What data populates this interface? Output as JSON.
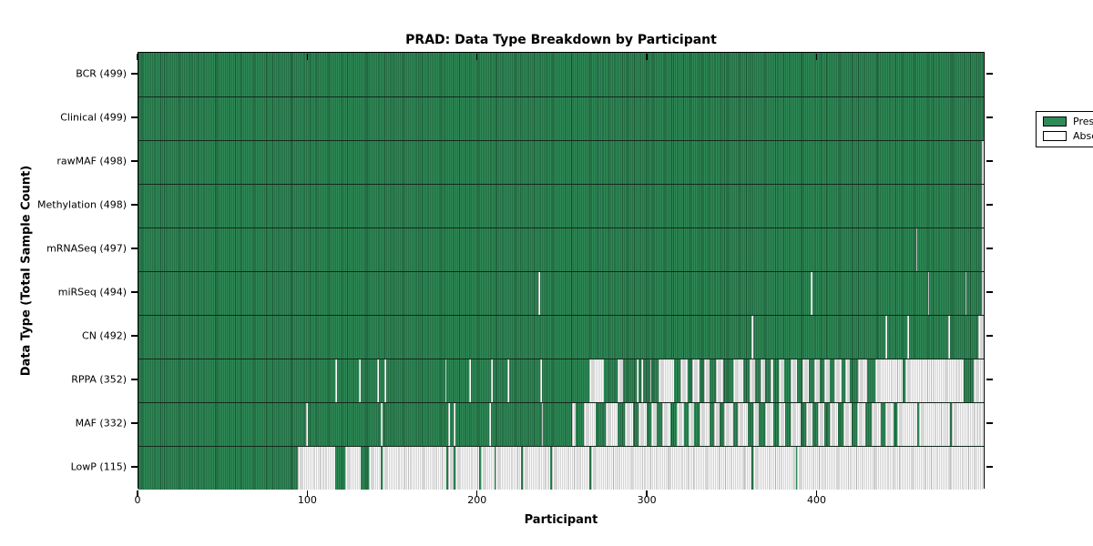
{
  "colors": {
    "present": "#2e8b57",
    "absent": "#ffffff",
    "frame": "#000000",
    "text": "#000000"
  },
  "chart_data": {
    "type": "heatmap",
    "title": "PRAD: Data Type Breakdown by Participant",
    "xlabel": "Participant",
    "ylabel": "Data Type (Total Sample Count)",
    "x_range": [
      0,
      499
    ],
    "n_participants": 499,
    "x_ticks": [
      0,
      100,
      200,
      300,
      400
    ],
    "grid": false,
    "legend_position": "upper right",
    "legend_entries": [
      {
        "label": "Present",
        "color": "#2e8b57"
      },
      {
        "label": "Absent",
        "color": "#ffffff"
      }
    ],
    "cell_states": {
      "present": "Present",
      "absent": "Absent"
    },
    "rows": [
      {
        "label": "BCR (499)",
        "data_type": "BCR",
        "present_count": 499,
        "absent_ranges": []
      },
      {
        "label": "Clinical (499)",
        "data_type": "Clinical",
        "present_count": 499,
        "absent_ranges": []
      },
      {
        "label": "rawMAF (498)",
        "data_type": "rawMAF",
        "present_count": 498,
        "absent_ranges": [
          [
            498,
            498
          ]
        ]
      },
      {
        "label": "Methylation (498)",
        "data_type": "Methylation",
        "present_count": 498,
        "absent_ranges": [
          [
            498,
            498
          ]
        ]
      },
      {
        "label": "mRNASeq (497)",
        "data_type": "mRNASeq",
        "present_count": 497,
        "absent_ranges": [
          [
            459,
            459
          ],
          [
            498,
            498
          ]
        ]
      },
      {
        "label": "miRSeq (494)",
        "data_type": "miRSeq",
        "present_count": 494,
        "absent_ranges": [
          [
            236,
            236
          ],
          [
            397,
            397
          ],
          [
            466,
            466
          ],
          [
            488,
            488
          ],
          [
            498,
            498
          ]
        ]
      },
      {
        "label": "CN (492)",
        "data_type": "CN",
        "present_count": 492,
        "absent_ranges": [
          [
            362,
            362
          ],
          [
            441,
            441
          ],
          [
            454,
            454
          ],
          [
            478,
            478
          ],
          [
            496,
            498
          ]
        ]
      },
      {
        "label": "RPPA (352)",
        "data_type": "RPPA",
        "present_count": 352,
        "absent_ranges": [
          [
            116,
            116
          ],
          [
            130,
            130
          ],
          [
            141,
            141
          ],
          [
            145,
            145
          ],
          [
            181,
            181
          ],
          [
            195,
            195
          ],
          [
            208,
            208
          ],
          [
            218,
            218
          ],
          [
            237,
            237
          ],
          [
            266,
            274
          ],
          [
            283,
            285
          ],
          [
            294,
            294
          ],
          [
            297,
            297
          ],
          [
            302,
            302
          ],
          [
            307,
            315
          ],
          [
            320,
            323
          ],
          [
            327,
            330
          ],
          [
            334,
            336
          ],
          [
            341,
            344
          ],
          [
            351,
            356
          ],
          [
            361,
            363
          ],
          [
            367,
            369
          ],
          [
            373,
            374
          ],
          [
            378,
            380
          ],
          [
            385,
            388
          ],
          [
            392,
            395
          ],
          [
            399,
            401
          ],
          [
            405,
            407
          ],
          [
            411,
            414
          ],
          [
            417,
            419
          ],
          [
            425,
            429
          ],
          [
            435,
            450
          ],
          [
            453,
            486
          ],
          [
            493,
            498
          ]
        ]
      },
      {
        "label": "MAF (332)",
        "data_type": "MAF",
        "present_count": 332,
        "absent_ranges": [
          [
            99,
            99
          ],
          [
            143,
            143
          ],
          [
            183,
            183
          ],
          [
            186,
            186
          ],
          [
            207,
            207
          ],
          [
            238,
            238
          ],
          [
            256,
            257
          ],
          [
            263,
            269
          ],
          [
            276,
            282
          ],
          [
            287,
            291
          ],
          [
            295,
            299
          ],
          [
            303,
            305
          ],
          [
            309,
            313
          ],
          [
            318,
            321
          ],
          [
            325,
            327
          ],
          [
            331,
            336
          ],
          [
            340,
            342
          ],
          [
            346,
            350
          ],
          [
            354,
            359
          ],
          [
            363,
            365
          ],
          [
            370,
            374
          ],
          [
            378,
            381
          ],
          [
            385,
            390
          ],
          [
            394,
            397
          ],
          [
            401,
            404
          ],
          [
            408,
            412
          ],
          [
            416,
            420
          ],
          [
            424,
            428
          ],
          [
            433,
            437
          ],
          [
            441,
            445
          ],
          [
            448,
            459
          ],
          [
            461,
            478
          ],
          [
            480,
            498
          ]
        ]
      },
      {
        "label": "LowP (115)",
        "data_type": "LowP",
        "present_count": 115,
        "absent_ranges": [
          [
            94,
            115
          ],
          [
            122,
            130
          ],
          [
            136,
            142
          ],
          [
            144,
            181
          ],
          [
            183,
            185
          ],
          [
            187,
            200
          ],
          [
            202,
            209
          ],
          [
            211,
            225
          ],
          [
            227,
            242
          ],
          [
            244,
            265
          ],
          [
            267,
            361
          ],
          [
            363,
            387
          ],
          [
            389,
            498
          ]
        ]
      }
    ]
  }
}
